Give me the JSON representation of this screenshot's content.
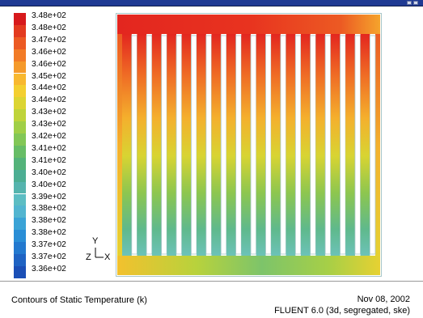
{
  "window": {
    "title": "",
    "colors": {
      "titlebar": "#1f3a93"
    }
  },
  "legend": {
    "colors": [
      "#d7191c",
      "#e33a1f",
      "#ec5a23",
      "#f27b27",
      "#f59a2b",
      "#f8b82f",
      "#f4cf2f",
      "#dcd532",
      "#bfd43a",
      "#a0cf47",
      "#82c756",
      "#67bd66",
      "#54b37a",
      "#4cae93",
      "#55b4ae",
      "#5cbdc3",
      "#52b5d0",
      "#3aa3d6",
      "#2a8ed6",
      "#2379cf",
      "#1f63c3",
      "#1b4fb6"
    ],
    "labels": [
      "3.48e+02",
      "3.48e+02",
      "3.47e+02",
      "3.46e+02",
      "3.46e+02",
      "3.45e+02",
      "3.44e+02",
      "3.44e+02",
      "3.43e+02",
      "3.43e+02",
      "3.42e+02",
      "3.41e+02",
      "3.41e+02",
      "3.40e+02",
      "3.40e+02",
      "3.39e+02",
      "3.38e+02",
      "3.38e+02",
      "3.38e+02",
      "3.37e+02",
      "3.37e+02",
      "3.36e+02"
    ]
  },
  "axis": {
    "y_label": "Y",
    "z_label": "Z",
    "x_label": "X"
  },
  "plot": {
    "channel_count": 17,
    "colors": {
      "hot": "#e3261f",
      "warm": "#f28a2a",
      "mid": "#f2c12e",
      "green": "#8cc650",
      "cool": "#6cc2b8",
      "frame": "#a8c6c8"
    }
  },
  "footer": {
    "caption": "Contours of Static Temperature (k)",
    "date": "Nov 08, 2002",
    "version": "FLUENT 6.0 (3d, segregated, ske)"
  }
}
